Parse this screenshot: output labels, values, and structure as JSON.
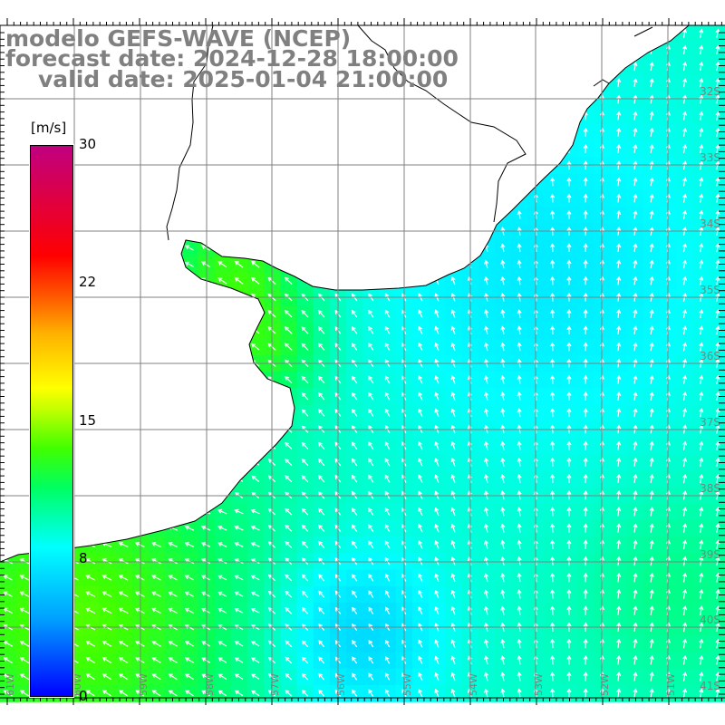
{
  "title": {
    "model": "modelo GEFS-WAVE (NCEP)",
    "forecast": "forecast date: 2024-12-28 18:00:00",
    "valid": "valid date: 2025-01-04 21:00:00"
  },
  "colorbar": {
    "unit": "[m/s]",
    "ticks": [
      "30",
      "22",
      "15",
      "8",
      "0"
    ],
    "range": [
      0,
      30
    ]
  },
  "axes": {
    "lon_labels": [
      "61W",
      "60W",
      "59W",
      "58W",
      "57W",
      "56W",
      "55W",
      "54W",
      "53W",
      "52W",
      "51W"
    ],
    "lat_labels": [
      "32S",
      "33S",
      "34S",
      "35S",
      "36S",
      "37S",
      "38S",
      "39S",
      "40S",
      "41S"
    ]
  },
  "colors": {
    "land": "#ffffff",
    "coast": "#000000",
    "grid": "#808080",
    "label": "#808080"
  }
}
